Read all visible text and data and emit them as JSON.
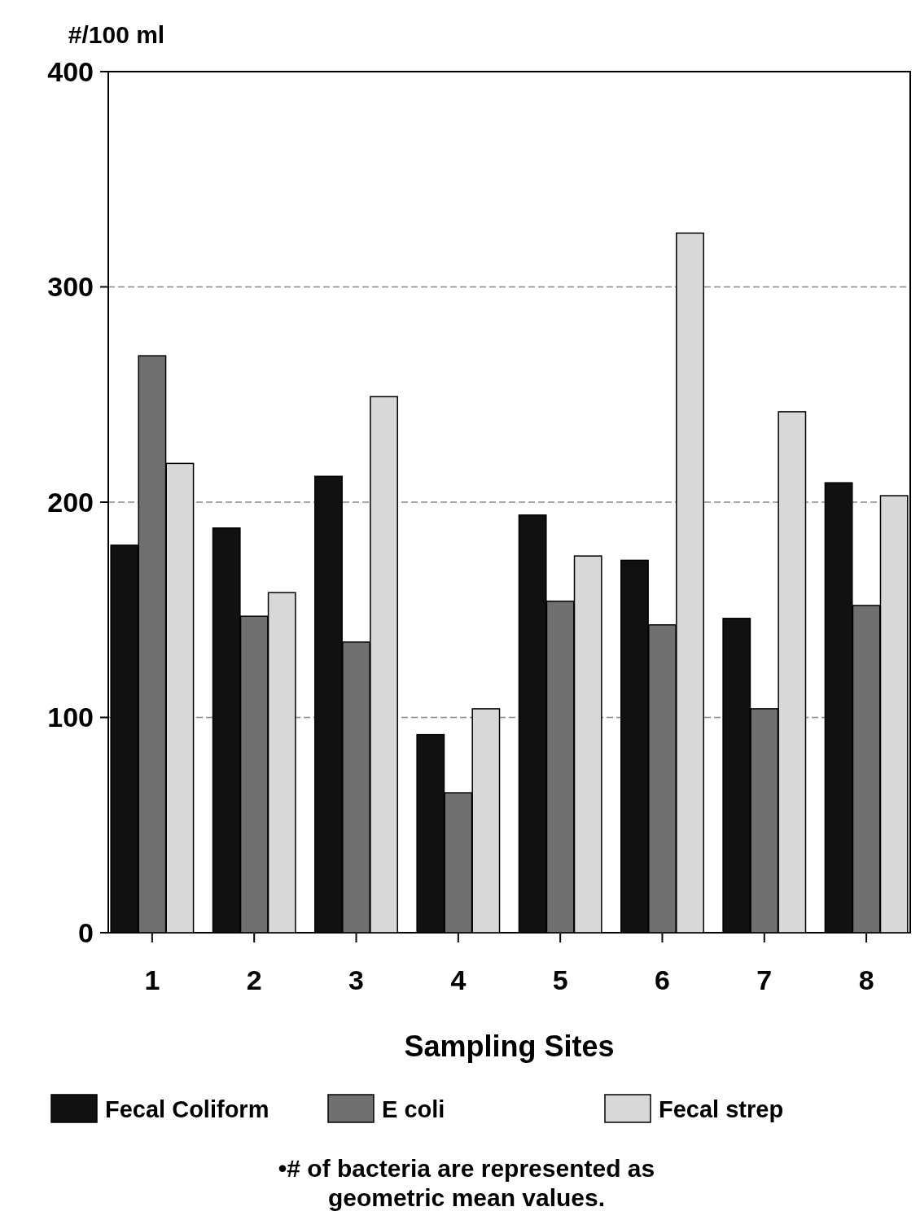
{
  "chart_data": {
    "type": "bar",
    "ylabel": "#/100 ml",
    "xlabel": "Sampling Sites",
    "categories": [
      "1",
      "2",
      "3",
      "4",
      "5",
      "6",
      "7",
      "8"
    ],
    "series": [
      {
        "name": "Fecal Coliform",
        "color": "#111111",
        "values": [
          180,
          188,
          212,
          92,
          194,
          173,
          146,
          209
        ]
      },
      {
        "name": "E coli",
        "color": "#707070",
        "values": [
          268,
          147,
          135,
          65,
          154,
          143,
          104,
          152
        ]
      },
      {
        "name": "Fecal strep",
        "color": "#d8d8d8",
        "values": [
          218,
          158,
          249,
          104,
          175,
          325,
          242,
          203
        ]
      }
    ],
    "ylim": [
      0,
      400
    ],
    "yticks": [
      0,
      100,
      200,
      300,
      400
    ],
    "grid": "y",
    "legend": "bottom",
    "annotations": [
      "•# of bacteria are represented as geometric mean values."
    ]
  }
}
